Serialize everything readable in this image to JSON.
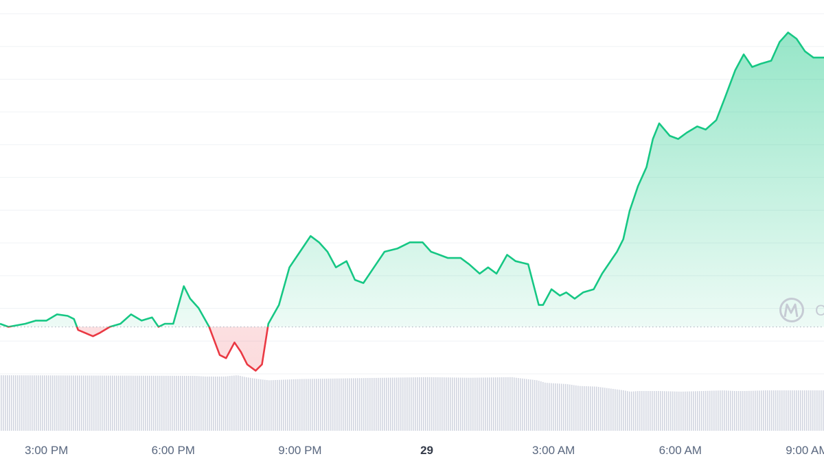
{
  "chart_data": {
    "type": "area",
    "xlabel": "",
    "ylabel": "",
    "x_ticks": [
      {
        "label": "3:00 PM",
        "t": 2,
        "bold": false
      },
      {
        "label": "6:00 PM",
        "t": 8,
        "bold": false
      },
      {
        "label": "9:00 PM",
        "t": 14,
        "bold": false
      },
      {
        "label": "29",
        "t": 20,
        "bold": true
      },
      {
        "label": "3:00 AM",
        "t": 26,
        "bold": false
      },
      {
        "label": "6:00 AM",
        "t": 32,
        "bold": false
      },
      {
        "label": "9:00 AM",
        "t": 38,
        "bold": false
      }
    ],
    "x_range_hours": [
      -0.2,
      38.8
    ],
    "y_range": [
      -15,
      100
    ],
    "reference_value": 0,
    "grid": true,
    "colors": {
      "up": "#16c784",
      "down": "#ea3943",
      "grid": "#eff2f5",
      "volume": "#d1d5e0",
      "reference": "#b8bdc7",
      "watermark": "#c6cbd4"
    },
    "series": [
      {
        "values": [
          [
            -0.2,
            1
          ],
          [
            0.2,
            0
          ],
          [
            1.0,
            1
          ],
          [
            1.5,
            2
          ],
          [
            2.0,
            2
          ],
          [
            2.5,
            4
          ],
          [
            3.0,
            3.5
          ],
          [
            3.3,
            2.5
          ],
          [
            3.5,
            -1
          ],
          [
            4.2,
            -3
          ],
          [
            4.5,
            -2
          ],
          [
            5.0,
            0
          ],
          [
            5.5,
            1
          ],
          [
            6.0,
            4
          ],
          [
            6.5,
            2
          ],
          [
            7.0,
            3
          ],
          [
            7.3,
            0
          ],
          [
            7.6,
            1
          ],
          [
            8.0,
            1
          ],
          [
            8.5,
            13
          ],
          [
            8.8,
            9
          ],
          [
            9.2,
            6
          ],
          [
            9.7,
            0
          ],
          [
            10.2,
            -9
          ],
          [
            10.5,
            -10
          ],
          [
            10.9,
            -5
          ],
          [
            11.2,
            -8
          ],
          [
            11.5,
            -12
          ],
          [
            11.9,
            -14
          ],
          [
            12.2,
            -12
          ],
          [
            12.5,
            1
          ],
          [
            13.0,
            7
          ],
          [
            13.5,
            19
          ],
          [
            14.0,
            24
          ],
          [
            14.5,
            29
          ],
          [
            14.9,
            27
          ],
          [
            15.3,
            24
          ],
          [
            15.7,
            19
          ],
          [
            16.2,
            21
          ],
          [
            16.6,
            15
          ],
          [
            17.0,
            14
          ],
          [
            17.6,
            20
          ],
          [
            18.0,
            24
          ],
          [
            18.6,
            25
          ],
          [
            19.2,
            27
          ],
          [
            19.8,
            27
          ],
          [
            20.2,
            24
          ],
          [
            20.6,
            23
          ],
          [
            21.0,
            22
          ],
          [
            21.6,
            22
          ],
          [
            22.0,
            20
          ],
          [
            22.5,
            17
          ],
          [
            22.9,
            19
          ],
          [
            23.3,
            17
          ],
          [
            23.8,
            23
          ],
          [
            24.2,
            21
          ],
          [
            24.8,
            20
          ],
          [
            25.3,
            7
          ],
          [
            25.5,
            7
          ],
          [
            25.9,
            12
          ],
          [
            26.3,
            10
          ],
          [
            26.6,
            11
          ],
          [
            27.0,
            9
          ],
          [
            27.4,
            11
          ],
          [
            27.9,
            12
          ],
          [
            28.3,
            17
          ],
          [
            28.7,
            21
          ],
          [
            29.0,
            24
          ],
          [
            29.3,
            28
          ],
          [
            29.6,
            37
          ],
          [
            30.0,
            45
          ],
          [
            30.4,
            51
          ],
          [
            30.7,
            60
          ],
          [
            31.0,
            65
          ],
          [
            31.5,
            61
          ],
          [
            31.9,
            60
          ],
          [
            32.3,
            62
          ],
          [
            32.8,
            64
          ],
          [
            33.2,
            63
          ],
          [
            33.7,
            66
          ],
          [
            34.1,
            73
          ],
          [
            34.6,
            82
          ],
          [
            35.0,
            87
          ],
          [
            35.4,
            83
          ],
          [
            35.8,
            84
          ],
          [
            36.3,
            85
          ],
          [
            36.7,
            91
          ],
          [
            37.1,
            94
          ],
          [
            37.5,
            92
          ],
          [
            37.9,
            88
          ],
          [
            38.3,
            86
          ],
          [
            38.8,
            86
          ]
        ]
      }
    ],
    "volume": {
      "values": [
        [
          -0.2,
          88
        ],
        [
          9.0,
          87
        ],
        [
          9.5,
          86
        ],
        [
          10.4,
          86
        ],
        [
          11.0,
          88
        ],
        [
          11.4,
          85
        ],
        [
          12.0,
          82
        ],
        [
          12.5,
          80
        ],
        [
          14.0,
          82
        ],
        [
          16.0,
          83
        ],
        [
          18.0,
          84
        ],
        [
          20.0,
          85
        ],
        [
          22.0,
          84
        ],
        [
          24.0,
          85
        ],
        [
          24.2,
          84
        ],
        [
          25.2,
          80
        ],
        [
          25.6,
          76
        ],
        [
          26.6,
          74
        ],
        [
          27.2,
          71
        ],
        [
          28.0,
          70
        ],
        [
          29.3,
          64
        ],
        [
          29.6,
          62
        ],
        [
          30.0,
          63
        ],
        [
          31.0,
          63
        ],
        [
          32.0,
          62
        ],
        [
          33.0,
          63
        ],
        [
          34.0,
          64
        ],
        [
          34.6,
          63
        ],
        [
          35.0,
          63
        ],
        [
          36.0,
          64
        ],
        [
          38.8,
          64
        ]
      ]
    }
  },
  "watermark": {
    "icon": "coinmarketcap-logo-icon",
    "text": "C"
  }
}
